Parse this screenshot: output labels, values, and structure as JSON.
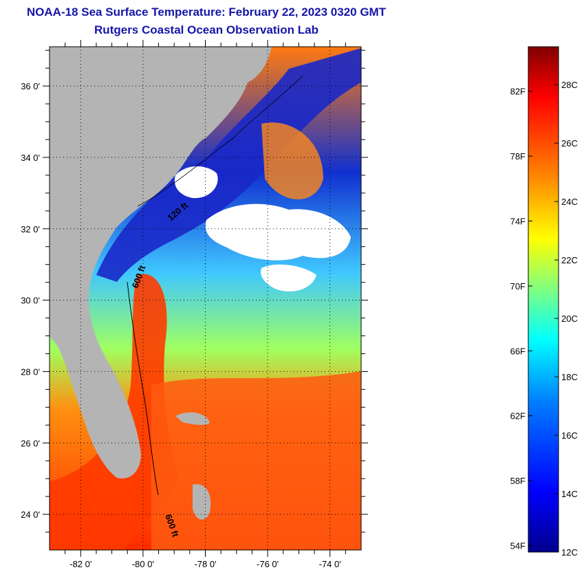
{
  "header": {
    "title": "NOAA-18 Sea Surface Temperature:  February 22, 2023 0320 GMT",
    "subtitle": "Rutgers Coastal Ocean Observation Lab"
  },
  "map": {
    "lat_range": [
      23,
      37.1
    ],
    "lon_range": [
      -83,
      -73
    ],
    "lat_ticks": [
      {
        "value": 36,
        "label": "36 0'"
      },
      {
        "value": 34,
        "label": "34 0'"
      },
      {
        "value": 32,
        "label": "32 0'"
      },
      {
        "value": 30,
        "label": "30 0'"
      },
      {
        "value": 28,
        "label": "28 0'"
      },
      {
        "value": 26,
        "label": "26 0'"
      },
      {
        "value": 24,
        "label": "24 0'"
      }
    ],
    "lon_ticks": [
      {
        "value": -82,
        "label": "-82 0'"
      },
      {
        "value": -80,
        "label": "-80 0'"
      },
      {
        "value": -78,
        "label": "-78 0'"
      },
      {
        "value": -76,
        "label": "-76 0'"
      },
      {
        "value": -74,
        "label": "-74 0'"
      }
    ],
    "contour_labels": [
      "120 ft",
      "600 ft",
      "600 ft"
    ],
    "colors": {
      "land": "#b4b4b4",
      "cloud": "#ffffff",
      "cold": "#0a14c8",
      "warm": "#ff2a00"
    }
  },
  "colorbar": {
    "f_labels": [
      "82F",
      "78F",
      "74F",
      "70F",
      "66F",
      "62F",
      "58F",
      "54F"
    ],
    "c_labels": [
      "28C",
      "26C",
      "24C",
      "22C",
      "20C",
      "18C",
      "16C",
      "14C",
      "12C"
    ],
    "gradient_stops": [
      "#00008c",
      "#0000ff",
      "#0080ff",
      "#00ffff",
      "#80ff80",
      "#ffff00",
      "#ff8000",
      "#ff0000",
      "#800000"
    ]
  }
}
